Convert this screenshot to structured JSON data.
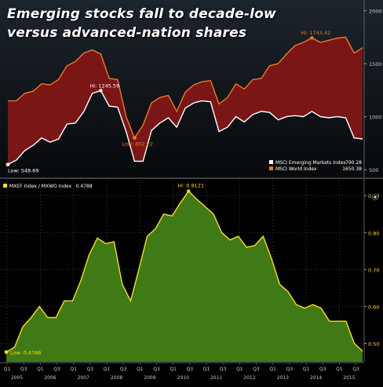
{
  "title_lines": [
    "Emerging stocks fall to decade-low",
    "versus advanced-nation shares"
  ],
  "colors": {
    "world_line": "#f07822",
    "world_fill": "#7a1616",
    "em_line": "#ffffff",
    "ratio_line": "#ffe000",
    "ratio_fill": "#3f7a17",
    "hi_low_label": "#ffffff",
    "low_label_em": "#f07822",
    "bottom_hi_label": "#ffe000"
  },
  "chart_data": [
    {
      "type": "area",
      "series": [
        {
          "name": "MSCI World Index",
          "last_value": "1650.38",
          "values": [
            1150,
            1150,
            1220,
            1240,
            1310,
            1300,
            1350,
            1480,
            1520,
            1600,
            1630,
            1590,
            1360,
            1350,
            1000,
            800,
            920,
            1130,
            1180,
            1200,
            1050,
            1230,
            1300,
            1330,
            1340,
            1120,
            1180,
            1310,
            1260,
            1350,
            1360,
            1480,
            1500,
            1590,
            1670,
            1700,
            1743.42,
            1700,
            1720,
            1740,
            1750,
            1600,
            1650.38
          ],
          "hi": {
            "label": "Hi: 1743.42",
            "index": 36
          },
          "low": {
            "label": "Low: 802.22",
            "index": 15
          }
        },
        {
          "name": "MSCI Emerging Markets Index",
          "last_value": "790.28",
          "values": [
            548.69,
            590,
            680,
            730,
            800,
            760,
            790,
            930,
            940,
            1050,
            1220,
            1245.59,
            1100,
            1090,
            860,
            580,
            580,
            870,
            940,
            990,
            900,
            1080,
            1130,
            1150,
            1140,
            860,
            900,
            1000,
            950,
            1020,
            1050,
            1040,
            970,
            1000,
            1010,
            1000,
            1050,
            1000,
            990,
            1000,
            990,
            800,
            790.28
          ],
          "hi": {
            "label": "Hi: 1245.59",
            "index": 11
          },
          "low": {
            "label": "Low: 548.69",
            "index": 0
          }
        }
      ],
      "y_ticks": [
        500,
        1000,
        1500,
        2000
      ],
      "ylim": [
        420,
        2100
      ],
      "legend_placement": "bottom-right"
    },
    {
      "type": "area",
      "series": [
        {
          "name": "MXEF Index / MXWO Index",
          "last_value": "0.4788",
          "values": [
            0.4766,
            0.49,
            0.545,
            0.57,
            0.6,
            0.57,
            0.57,
            0.615,
            0.615,
            0.67,
            0.74,
            0.785,
            0.77,
            0.775,
            0.66,
            0.615,
            0.7,
            0.79,
            0.81,
            0.85,
            0.845,
            0.88,
            0.9121,
            0.89,
            0.87,
            0.85,
            0.8,
            0.78,
            0.79,
            0.76,
            0.765,
            0.79,
            0.73,
            0.66,
            0.64,
            0.605,
            0.595,
            0.605,
            0.595,
            0.56,
            0.56,
            0.56,
            0.5,
            0.4788
          ],
          "hi": {
            "label": "Hi: 0.9121",
            "index": 22
          },
          "low": {
            "label": "Low: 0.4766",
            "index": 0
          }
        }
      ],
      "y_ticks": [
        "0.50",
        "0.60",
        "0.70",
        "0.80",
        "0.90"
      ],
      "ylim": [
        0.45,
        0.945
      ],
      "legend_placement": "top-left",
      "x_quarter_labels": [
        "Q1",
        "Q3",
        "Q1",
        "Q3",
        "Q1",
        "Q3",
        "Q1",
        "Q3",
        "Q1",
        "Q3",
        "Q1",
        "Q3",
        "Q1",
        "Q3",
        "Q1",
        "Q3",
        "Q1",
        "Q3",
        "Q1",
        "Q3",
        "Q1",
        "Q3"
      ],
      "x_year_labels": [
        "2005",
        "2006",
        "2007",
        "2008",
        "2009",
        "2010",
        "2011",
        "2012",
        "2013",
        "2014",
        "2015"
      ]
    }
  ]
}
